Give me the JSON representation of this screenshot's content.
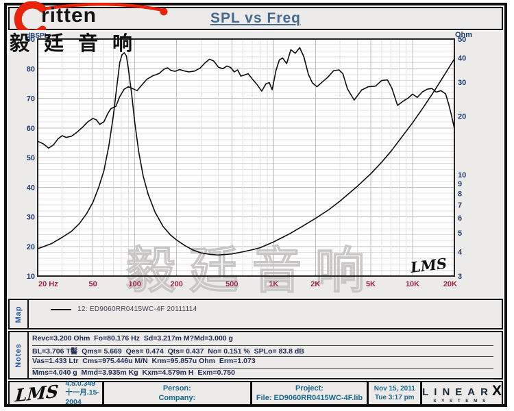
{
  "brand": {
    "name_latin": "ritten",
    "name_cn": "毅廷音响",
    "swoosh_color": "#e8250c"
  },
  "header": {
    "title": "SPL vs Freq"
  },
  "chart_data": {
    "type": "line",
    "title": "SPL vs Freq",
    "x_axis": {
      "scale": "log",
      "range": [
        20,
        20000
      ],
      "major_ticks": [
        {
          "f": 20,
          "label": "20 Hz"
        },
        {
          "f": 50,
          "label": "50"
        },
        {
          "f": 100,
          "label": "100"
        },
        {
          "f": 200,
          "label": "200"
        },
        {
          "f": 500,
          "label": "500"
        },
        {
          "f": 1000,
          "label": "1K"
        },
        {
          "f": 2000,
          "label": "2K"
        },
        {
          "f": 5000,
          "label": "5K"
        },
        {
          "f": 10000,
          "label": "10K"
        },
        {
          "f": 20000,
          "label": "20K"
        }
      ],
      "minor_ticks": [
        30,
        40,
        60,
        70,
        80,
        90,
        300,
        400,
        600,
        700,
        800,
        900,
        3000,
        4000,
        6000,
        7000,
        8000,
        9000
      ]
    },
    "left_axis": {
      "title": "dBSPL",
      "range": [
        10,
        90
      ],
      "ticks": [
        90,
        80,
        70,
        60,
        50,
        40,
        30,
        20,
        10
      ],
      "grid_step": 2
    },
    "right_axis": {
      "title": "Ohm",
      "scale": "log",
      "range": [
        3,
        50
      ],
      "ticks": [
        50,
        40,
        30,
        20,
        10,
        9,
        8,
        7,
        6,
        5,
        4,
        3
      ]
    },
    "series": [
      {
        "name": "SPL (dB)",
        "axis": "left",
        "points": [
          [
            20,
            55.5
          ],
          [
            22,
            54.6
          ],
          [
            24,
            53.2
          ],
          [
            26,
            54.3
          ],
          [
            28,
            56.3
          ],
          [
            30,
            57.4
          ],
          [
            32,
            56.8
          ],
          [
            35,
            57.2
          ],
          [
            38,
            58.4
          ],
          [
            42,
            60.2
          ],
          [
            46,
            62.1
          ],
          [
            50,
            63.2
          ],
          [
            53,
            62.7
          ],
          [
            56,
            61.2
          ],
          [
            60,
            62.1
          ],
          [
            64,
            64.9
          ],
          [
            67,
            66.4
          ],
          [
            70,
            66.9
          ],
          [
            73,
            67.3
          ],
          [
            78,
            70.6
          ],
          [
            84,
            73.1
          ],
          [
            90,
            73.9
          ],
          [
            96,
            73.3
          ],
          [
            104,
            72.6
          ],
          [
            112,
            74.4
          ],
          [
            122,
            76.4
          ],
          [
            135,
            77.6
          ],
          [
            150,
            78.4
          ],
          [
            162,
            79.8
          ],
          [
            172,
            80.3
          ],
          [
            182,
            79.4
          ],
          [
            195,
            79.1
          ],
          [
            210,
            79.7
          ],
          [
            225,
            79.3
          ],
          [
            245,
            78.9
          ],
          [
            270,
            79.2
          ],
          [
            295,
            80.2
          ],
          [
            320,
            81.9
          ],
          [
            345,
            83.2
          ],
          [
            370,
            82.6
          ],
          [
            400,
            80.5
          ],
          [
            430,
            80.0
          ],
          [
            460,
            80.9
          ],
          [
            490,
            80.4
          ],
          [
            520,
            78.9
          ],
          [
            550,
            79.6
          ],
          [
            580,
            77.5
          ],
          [
            620,
            77.9
          ],
          [
            655,
            78.3
          ],
          [
            700,
            76.6
          ],
          [
            760,
            74.6
          ],
          [
            820,
            72.4
          ],
          [
            880,
            74.9
          ],
          [
            930,
            75.3
          ],
          [
            975,
            72.9
          ],
          [
            1040,
            79.5
          ],
          [
            1100,
            83.0
          ],
          [
            1160,
            83.6
          ],
          [
            1240,
            81.7
          ],
          [
            1330,
            86.4
          ],
          [
            1430,
            85.2
          ],
          [
            1540,
            87.1
          ],
          [
            1650,
            84.0
          ],
          [
            1780,
            78.0
          ],
          [
            1900,
            75.2
          ],
          [
            2050,
            73.9
          ],
          [
            2250,
            75.6
          ],
          [
            2450,
            77.1
          ],
          [
            2700,
            79.3
          ],
          [
            2950,
            79.6
          ],
          [
            3150,
            78.3
          ],
          [
            3400,
            73.2
          ],
          [
            3800,
            69.4
          ],
          [
            4300,
            72.8
          ],
          [
            4800,
            73.9
          ],
          [
            5400,
            74.1
          ],
          [
            6000,
            76.0
          ],
          [
            6600,
            76.2
          ],
          [
            7100,
            73.4
          ],
          [
            7800,
            67.6
          ],
          [
            8600,
            69.1
          ],
          [
            9300,
            70.1
          ],
          [
            10000,
            71.4
          ],
          [
            10800,
            70.3
          ],
          [
            11800,
            72.2
          ],
          [
            12800,
            73.1
          ],
          [
            13800,
            73.3
          ],
          [
            14800,
            72.1
          ],
          [
            16000,
            72.6
          ],
          [
            17300,
            71.5
          ],
          [
            18200,
            68.0
          ],
          [
            19000,
            64.5
          ],
          [
            20000,
            59.8
          ]
        ]
      },
      {
        "name": "Impedance (Ohm)",
        "axis": "right",
        "points": [
          [
            20,
            4.15
          ],
          [
            25,
            4.4
          ],
          [
            30,
            4.75
          ],
          [
            35,
            5.1
          ],
          [
            40,
            5.6
          ],
          [
            45,
            6.3
          ],
          [
            50,
            7.2
          ],
          [
            55,
            8.6
          ],
          [
            60,
            10.5
          ],
          [
            65,
            14.0
          ],
          [
            70,
            20.0
          ],
          [
            74,
            28.0
          ],
          [
            78,
            38.0
          ],
          [
            81,
            41.5
          ],
          [
            84,
            42.5
          ],
          [
            87,
            41.0
          ],
          [
            90,
            35.0
          ],
          [
            95,
            26.0
          ],
          [
            100,
            18.5
          ],
          [
            107,
            13.0
          ],
          [
            115,
            9.8
          ],
          [
            125,
            7.9
          ],
          [
            140,
            6.4
          ],
          [
            160,
            5.4
          ],
          [
            180,
            4.9
          ],
          [
            200,
            4.6
          ],
          [
            230,
            4.3
          ],
          [
            260,
            4.1
          ],
          [
            300,
            3.95
          ],
          [
            350,
            3.88
          ],
          [
            400,
            3.85
          ],
          [
            500,
            3.9
          ],
          [
            600,
            4.0
          ],
          [
            700,
            4.1
          ],
          [
            800,
            4.2
          ],
          [
            1000,
            4.5
          ],
          [
            1300,
            4.95
          ],
          [
            1600,
            5.4
          ],
          [
            2000,
            5.95
          ],
          [
            2500,
            6.6
          ],
          [
            3000,
            7.3
          ],
          [
            4000,
            8.7
          ],
          [
            5000,
            10.1
          ],
          [
            6000,
            11.6
          ],
          [
            7000,
            13.2
          ],
          [
            8000,
            15.0
          ],
          [
            10000,
            18.5
          ],
          [
            12000,
            22.3
          ],
          [
            14000,
            26.3
          ],
          [
            16000,
            30.6
          ],
          [
            18000,
            35.0
          ],
          [
            20000,
            39.5
          ]
        ]
      }
    ],
    "watermark": "毅廷音响",
    "corner_logo": "LMS",
    "colors": {
      "curve": "#0b0b0b",
      "x_labels": "#9a2440",
      "y_labels": "#1c3e6e",
      "grid_minor": "#e0dede",
      "grid_major": "#bfbcbc",
      "plot_border": "#242424"
    }
  },
  "map_panel": {
    "tab_label": "Map",
    "legend": [
      {
        "id_label": "12: ED9060RR0415WC-4F 20111114"
      }
    ]
  },
  "notes_panel": {
    "tab_label": "Notes",
    "lines": [
      "Revc=3.200 Ohm  Fo=80.176 Hz  Sd=3.217m M?Md=3.000 g",
      "BL=3.706 T髻  Qms= 5.669  Qes= 0.474  Qts= 0.437  No= 0.151 %  SPLo= 83.8 dB",
      "Vas=1.433 Ltr  Cms=975.446u M/N  Krm=95.857u Ohm  Erm=1.073",
      "Mms=4.040 g  Mmd=3.935m Kg  Kxm=4.579m H  Exm=0.750"
    ]
  },
  "status_bar": {
    "logo": "LMS",
    "version": "4.5.0.349",
    "build_date": "十一月.15-2004",
    "person_label": "Person:",
    "company_label": "Company:",
    "project_label": "Project:",
    "file_label": "File: ED9060RR0415WC-4F.lib",
    "date": "Nov 15, 2011",
    "time": "Tue  3:17 pm",
    "vendor": {
      "name": "LINEAR",
      "x": "X",
      "sub": "SYSTEMS"
    }
  }
}
